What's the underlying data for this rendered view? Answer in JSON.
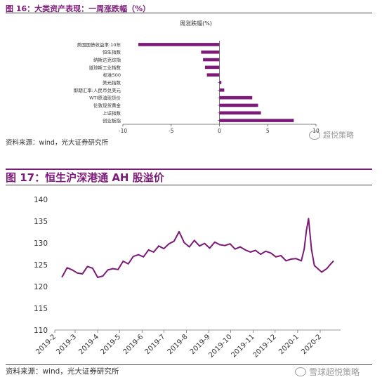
{
  "figure1": {
    "title": "图 16：大类资产表现：一周涨跌幅（%）",
    "source": "资料来源：wind，光大证券研究所",
    "watermark": "超悦策略",
    "chart_data": {
      "type": "bar",
      "orientation": "horizontal",
      "title": "周涨跌幅(%)",
      "categories": [
        "美国国债收益率:10年",
        "恒生指数",
        "纳斯达克综指",
        "道琼斯工业指数",
        "标准500",
        "美元指数",
        "即期汇率:人民币兑美元",
        "WTI原油现货价",
        "伦敦现货黄金",
        "上证指数",
        "创业板指"
      ],
      "values": [
        -8.4,
        -1.9,
        -1.7,
        -1.5,
        -1.3,
        0.2,
        0.5,
        3.4,
        4.0,
        4.3,
        7.7
      ],
      "xlim": [
        -10,
        10
      ],
      "xticks": [
        -10,
        -5,
        0,
        5,
        10
      ],
      "color": "#7b1a78"
    }
  },
  "figure2": {
    "title": "图 17：恒生沪深港通 AH 股溢价",
    "source": "资料来源：wind，光大证券研究所",
    "watermark": "雪球超悦策略",
    "chart_data": {
      "type": "line",
      "title": "",
      "ylim": [
        110,
        140
      ],
      "yticks": [
        110,
        115,
        120,
        125,
        130,
        135,
        140
      ],
      "xticks": [
        "2019-2",
        "2019-3",
        "2019-4",
        "2019-5",
        "2019-6",
        "2019-7",
        "2019-8",
        "2019-9",
        "2019-10",
        "2019-11",
        "2019-12",
        "2020-1",
        "2020-2"
      ],
      "series": [
        {
          "color": "#7b1a78",
          "x": [
            "2019-2-11",
            "2019-2-18",
            "2019-2-25",
            "2019-3-4",
            "2019-3-11",
            "2019-3-18",
            "2019-3-25",
            "2019-4-1",
            "2019-4-8",
            "2019-4-15",
            "2019-4-22",
            "2019-4-29",
            "2019-5-6",
            "2019-5-13",
            "2019-5-20",
            "2019-5-27",
            "2019-6-3",
            "2019-6-10",
            "2019-6-17",
            "2019-6-24",
            "2019-7-1",
            "2019-7-8",
            "2019-7-15",
            "2019-7-22",
            "2019-7-29",
            "2019-8-5",
            "2019-8-12",
            "2019-8-19",
            "2019-8-26",
            "2019-9-2",
            "2019-9-9",
            "2019-9-16",
            "2019-9-23",
            "2019-9-30",
            "2019-10-7",
            "2019-10-14",
            "2019-10-21",
            "2019-10-28",
            "2019-11-4",
            "2019-11-11",
            "2019-11-18",
            "2019-11-25",
            "2019-12-2",
            "2019-12-9",
            "2019-12-16",
            "2019-12-23",
            "2019-12-30",
            "2020-1-6",
            "2020-1-10",
            "2020-1-13",
            "2020-1-16",
            "2020-1-20",
            "2020-1-24",
            "2020-2-3",
            "2020-2-10",
            "2020-2-14",
            "2020-2-19"
          ],
          "values": [
            122.2,
            124.3,
            123.8,
            123.1,
            122.9,
            124.6,
            124.2,
            122.1,
            122.4,
            123.8,
            124.1,
            123.9,
            125.8,
            125.2,
            126.9,
            127.3,
            126.8,
            128.4,
            127.9,
            129.3,
            128.7,
            129.8,
            130.4,
            132.6,
            130.1,
            129.1,
            130.6,
            129.3,
            129.9,
            128.8,
            130.2,
            129.6,
            129.4,
            129.8,
            128.6,
            129.1,
            128.4,
            127.9,
            128.3,
            127.4,
            128.1,
            127.7,
            126.8,
            127.1,
            125.9,
            126.3,
            126.4,
            125.9,
            128.6,
            132.8,
            135.6,
            128.5,
            124.8,
            123.3,
            124.1,
            124.9,
            125.8
          ]
        }
      ]
    }
  }
}
